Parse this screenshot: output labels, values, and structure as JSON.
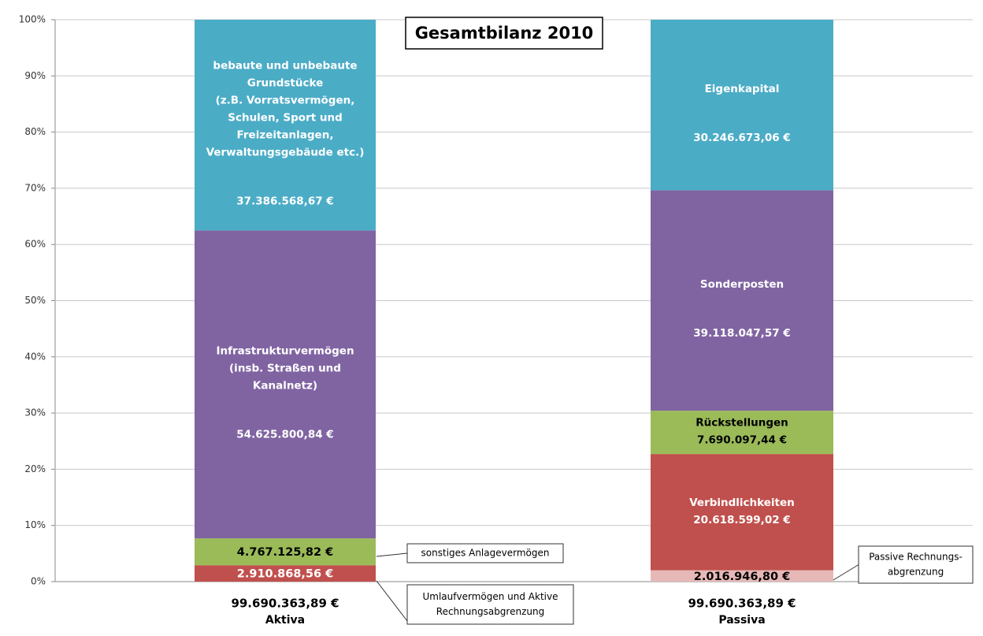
{
  "chart_data": {
    "type": "stacked-bar-percent",
    "title": "Gesamtbilanz 2010",
    "ylim": [
      0,
      100
    ],
    "yticks": [
      {
        "value": 0,
        "label": "0%"
      },
      {
        "value": 10,
        "label": "10%"
      },
      {
        "value": 20,
        "label": "20%"
      },
      {
        "value": 30,
        "label": "30%"
      },
      {
        "value": 40,
        "label": "40%"
      },
      {
        "value": 50,
        "label": "50%"
      },
      {
        "value": 60,
        "label": "60%"
      },
      {
        "value": 70,
        "label": "70%"
      },
      {
        "value": 80,
        "label": "80%"
      },
      {
        "value": 90,
        "label": "90%"
      },
      {
        "value": 100,
        "label": "100%"
      }
    ],
    "grid": true,
    "bars": [
      {
        "category": "Aktiva",
        "total": 99690363.89,
        "total_label": "99.690.363,89 €",
        "segments": [
          {
            "callout": [
              "Umlaufvermögen und Aktive",
              "Rechnungsabgrenzung"
            ],
            "value": 2910868.56,
            "value_label": "2.910.868,56 €",
            "color": "#c0504d",
            "text_color": "#ffffff"
          },
          {
            "callout": [
              "sonstiges Anlagevermögen"
            ],
            "value": 4767125.82,
            "value_label": "4.767.125,82 €",
            "color": "#9bbb59",
            "text_color": "#000000"
          },
          {
            "name": [
              "Infrastrukturvermögen",
              "(insb. Straßen und",
              "Kanalnetz)"
            ],
            "value": 54625800.84,
            "value_label": "54.625.800,84 €",
            "color": "#8064a2",
            "text_color": "#ffffff"
          },
          {
            "name": [
              "bebaute und unbebaute",
              "Grundstücke",
              "(z.B. Vorratsvermögen,",
              "Schulen, Sport und",
              "Freizeitanlagen,",
              "Verwaltungsgebäude etc.)"
            ],
            "value": 37386568.67,
            "value_label": "37.386.568,67 €",
            "color": "#4bacc6",
            "text_color": "#ffffff"
          }
        ]
      },
      {
        "category": "Passiva",
        "total": 99690363.89,
        "total_label": "99.690.363,89 €",
        "segments": [
          {
            "callout": [
              "Passive Rechnungs-",
              "abgrenzung"
            ],
            "value": 2016946.8,
            "value_label": "2.016.946,80 €",
            "color": "#e6b9b8",
            "text_color": "#000000"
          },
          {
            "name": [
              "Verbindlichkeiten"
            ],
            "value": 20618599.02,
            "value_label": "20.618.599,02 €",
            "color": "#c0504d",
            "text_color": "#ffffff"
          },
          {
            "name": [
              "Rückstellungen"
            ],
            "value": 7690097.44,
            "value_label": "7.690.097,44 €",
            "color": "#9bbb59",
            "text_color": "#000000"
          },
          {
            "name": [
              "Sonderposten"
            ],
            "value": 39118047.57,
            "value_label": "39.118.047,57 €",
            "color": "#8064a2",
            "text_color": "#ffffff"
          },
          {
            "name": [
              "Eigenkapital"
            ],
            "value": 30246673.06,
            "value_label": "30.246.673,06 €",
            "color": "#4bacc6",
            "text_color": "#ffffff"
          }
        ]
      }
    ]
  }
}
